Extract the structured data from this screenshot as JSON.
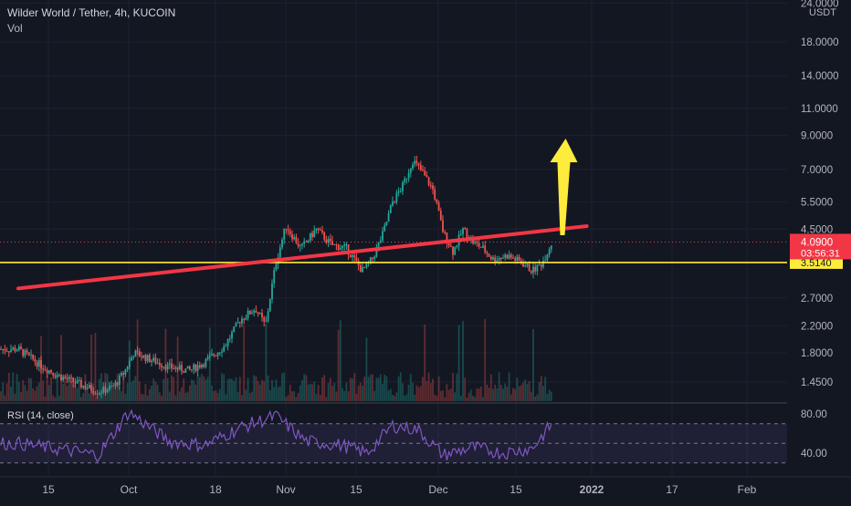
{
  "header": {
    "title": "Wilder World / Tether, 4h, KUCOIN",
    "volume_label": "Vol"
  },
  "price_axis": {
    "currency": "USDT",
    "ticks": [
      "24.0000",
      "18.0000",
      "14.0000",
      "11.0000",
      "9.0000",
      "7.0000",
      "5.5000",
      "4.5000",
      "2.7000",
      "2.2000",
      "1.8000",
      "1.4500"
    ],
    "tick_values": [
      24,
      18,
      14,
      11,
      9,
      7,
      5.5,
      4.5,
      2.7,
      2.2,
      1.8,
      1.45
    ],
    "current_price": "4.0900",
    "countdown": "03:56:31",
    "yellow_level_label": "3.5140",
    "yellow_level_value": 3.514
  },
  "rsi": {
    "label": "RSI (14, close)",
    "ticks": [
      "80.00",
      "40.00"
    ],
    "tick_values": [
      80,
      40
    ],
    "upper_band": 70,
    "lower_band": 30
  },
  "time_axis": {
    "ticks": [
      "15",
      "Oct",
      "18",
      "Nov",
      "15",
      "Dec",
      "15",
      "2022",
      "17",
      "Feb"
    ],
    "bold_ticks": [
      "2022"
    ]
  },
  "colors": {
    "background": "#131722",
    "up": "#26a69a",
    "down": "#ef5350",
    "trendline": "#f23645",
    "horizontal_line": "#ffeb3b",
    "arrow": "#ffeb3b",
    "rsi_line": "#7e57c2",
    "current_price_badge": "#f23645"
  },
  "chart_data": {
    "type": "candlestick",
    "timeframe": "4h",
    "scale": "log",
    "ylim": [
      1.3,
      25
    ],
    "approx_close_path": [
      {
        "x": "2021-09-09",
        "y": 1.85
      },
      {
        "x": "2021-09-14",
        "y": 1.62
      },
      {
        "x": "2021-09-17",
        "y": 1.52
      },
      {
        "x": "2021-09-21",
        "y": 1.43
      },
      {
        "x": "2021-09-25",
        "y": 1.35
      },
      {
        "x": "2021-09-28",
        "y": 1.4
      },
      {
        "x": "2021-09-30",
        "y": 1.55
      },
      {
        "x": "2021-10-02",
        "y": 1.8
      },
      {
        "x": "2021-10-05",
        "y": 1.72
      },
      {
        "x": "2021-10-09",
        "y": 1.62
      },
      {
        "x": "2021-10-13",
        "y": 1.58
      },
      {
        "x": "2021-10-16",
        "y": 1.68
      },
      {
        "x": "2021-10-20",
        "y": 1.9
      },
      {
        "x": "2021-10-23",
        "y": 2.3
      },
      {
        "x": "2021-10-26",
        "y": 2.5
      },
      {
        "x": "2021-10-28",
        "y": 2.2
      },
      {
        "x": "2021-10-30",
        "y": 3.5
      },
      {
        "x": "2021-11-01",
        "y": 4.6
      },
      {
        "x": "2021-11-04",
        "y": 3.9
      },
      {
        "x": "2021-11-07",
        "y": 4.5
      },
      {
        "x": "2021-11-10",
        "y": 4.0
      },
      {
        "x": "2021-11-13",
        "y": 3.9
      },
      {
        "x": "2021-11-16",
        "y": 3.3
      },
      {
        "x": "2021-11-18",
        "y": 3.6
      },
      {
        "x": "2021-11-20",
        "y": 4.3
      },
      {
        "x": "2021-11-22",
        "y": 5.5
      },
      {
        "x": "2021-11-24",
        "y": 6.2
      },
      {
        "x": "2021-11-26",
        "y": 7.5
      },
      {
        "x": "2021-11-28",
        "y": 6.8
      },
      {
        "x": "2021-11-30",
        "y": 6.0
      },
      {
        "x": "2021-12-02",
        "y": 4.4
      },
      {
        "x": "2021-12-04",
        "y": 3.8
      },
      {
        "x": "2021-12-06",
        "y": 4.5
      },
      {
        "x": "2021-12-08",
        "y": 4.1
      },
      {
        "x": "2021-12-10",
        "y": 3.9
      },
      {
        "x": "2021-12-12",
        "y": 3.6
      },
      {
        "x": "2021-12-15",
        "y": 3.7
      },
      {
        "x": "2021-12-18",
        "y": 3.5
      },
      {
        "x": "2021-12-20",
        "y": 3.3
      },
      {
        "x": "2021-12-22",
        "y": 3.5
      },
      {
        "x": "2021-12-24",
        "y": 4.1
      }
    ],
    "approx_rsi_path": [
      {
        "x": "2021-09-09",
        "y": 50
      },
      {
        "x": "2021-09-17",
        "y": 44
      },
      {
        "x": "2021-09-25",
        "y": 38
      },
      {
        "x": "2021-10-01",
        "y": 82
      },
      {
        "x": "2021-10-09",
        "y": 52
      },
      {
        "x": "2021-10-16",
        "y": 48
      },
      {
        "x": "2021-10-23",
        "y": 66
      },
      {
        "x": "2021-10-30",
        "y": 78
      },
      {
        "x": "2021-11-05",
        "y": 52
      },
      {
        "x": "2021-11-12",
        "y": 48
      },
      {
        "x": "2021-11-17",
        "y": 40
      },
      {
        "x": "2021-11-22",
        "y": 68
      },
      {
        "x": "2021-11-27",
        "y": 64
      },
      {
        "x": "2021-12-02",
        "y": 38
      },
      {
        "x": "2021-12-08",
        "y": 46
      },
      {
        "x": "2021-12-14",
        "y": 40
      },
      {
        "x": "2021-12-20",
        "y": 45
      },
      {
        "x": "2021-12-24",
        "y": 70
      }
    ],
    "trendline": {
      "from": {
        "x": "2021-09-09",
        "y": 2.9
      },
      "to": {
        "x": "2021-12-31",
        "y": 4.6
      }
    },
    "horizontal_line": 3.514,
    "arrow": {
      "x": "2021-12-26",
      "from": 4.3,
      "to": 8.8
    }
  }
}
